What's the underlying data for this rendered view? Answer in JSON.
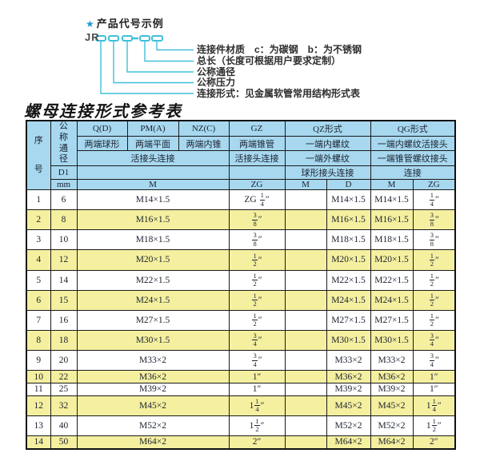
{
  "colors": {
    "accent_cyan": "#3fc0da",
    "star_blue": "#1e9ad6",
    "header_bg": "#a7d8ef",
    "row_alt_bg": "#f5f0a0",
    "border": "#1a1a1a"
  },
  "diagram": {
    "star": "★",
    "title": "产品代号示例",
    "prefix": "JR",
    "labels": [
      "连接件材质　c：为碳钢　b：为不锈钢",
      "总长（长度可根据用户要求定制）",
      "公称通径",
      "公称压力",
      "连接形式：见金属软管常用结构形式表"
    ]
  },
  "table": {
    "title": "螺母连接形式参考表",
    "header": {
      "seq": "序\n号",
      "dn": "公\n称\n通\n径",
      "d1": "D1",
      "mm": "mm",
      "q": "Q(D)",
      "q_sub": "两端球形",
      "pm": "PM(A)",
      "pm_sub": "两端平面",
      "nz": "NZ(C)",
      "nz_sub": "两端内锥",
      "gz": "GZ",
      "gz_sub": "两端锥管",
      "qz": "QZ形式",
      "qz_sub1": "一端内螺纹",
      "qz_sub2": "一端外螺纹",
      "qz_sub3": "球形接头连接",
      "qg": "QG形式",
      "qg_sub1": "一端内螺纹活接头",
      "qg_sub2": "一端锥管螺纹接头",
      "qg_sub3": "连接",
      "joint3": "活接头连接",
      "joint_gz": "活接头连接",
      "m": "M",
      "zg": "ZG",
      "qz_m": "M",
      "qz_d": "D",
      "qg_m": "M",
      "qg_zg": "ZG"
    },
    "rows": [
      {
        "seq": "1",
        "dn": "6",
        "m": "M14×1.5",
        "gz_zg": "ZG {1/4}″",
        "qz_m": "",
        "qz_d": "M14×1.5",
        "qg_m": "M14×1.5",
        "qg_zg": "{1/4}″"
      },
      {
        "seq": "2",
        "dn": "8",
        "m": "M16×1.5",
        "gz_zg": "{3/8}″",
        "qz_m": "",
        "qz_d": "M16×1.5",
        "qg_m": "M16×1.5",
        "qg_zg": "{3/8}″"
      },
      {
        "seq": "3",
        "dn": "10",
        "m": "M18×1.5",
        "gz_zg": "{3/8}″",
        "qz_m": "",
        "qz_d": "M18×1.5",
        "qg_m": "M18×1.5",
        "qg_zg": "{3/8}″"
      },
      {
        "seq": "4",
        "dn": "12",
        "m": "M20×1.5",
        "gz_zg": "{1/2}″",
        "qz_m": "",
        "qz_d": "M20×1.5",
        "qg_m": "M20×1.5",
        "qg_zg": "{1/2}″"
      },
      {
        "seq": "5",
        "dn": "14",
        "m": "M22×1.5",
        "gz_zg": "{1/2}″",
        "qz_m": "",
        "qz_d": "M22×1.5",
        "qg_m": "M22×1.5",
        "qg_zg": "{1/2}″"
      },
      {
        "seq": "6",
        "dn": "15",
        "m": "M24×1.5",
        "gz_zg": "{1/2}″",
        "qz_m": "",
        "qz_d": "M24×1.5",
        "qg_m": "M24×1.5",
        "qg_zg": "{1/2}″"
      },
      {
        "seq": "7",
        "dn": "16",
        "m": "M27×1.5",
        "gz_zg": "{1/2}″",
        "qz_m": "",
        "qz_d": "M27×1.5",
        "qg_m": "M27×1.5",
        "qg_zg": "{1/2}″"
      },
      {
        "seq": "8",
        "dn": "18",
        "m": "M30×1.5",
        "gz_zg": "{3/4}″",
        "qz_m": "",
        "qz_d": "M30×1.5",
        "qg_m": "M30×1.5",
        "qg_zg": "{3/4}″"
      },
      {
        "seq": "9",
        "dn": "20",
        "m": "M33×2",
        "gz_zg": "{3/4}″",
        "qz_m": "",
        "qz_d": "M33×2",
        "qg_m": "M33×2",
        "qg_zg": "{3/4}″"
      },
      {
        "seq": "10",
        "dn": "22",
        "m": "M36×2",
        "gz_zg": "1″",
        "qz_m": "",
        "qz_d": "M36×2",
        "qg_m": "M36×2",
        "qg_zg": "1″"
      },
      {
        "seq": "11",
        "dn": "25",
        "m": "M39×2",
        "gz_zg": "1″",
        "qz_m": "",
        "qz_d": "M39×2",
        "qg_m": "M39×2",
        "qg_zg": "1″"
      },
      {
        "seq": "12",
        "dn": "32",
        "m": "M45×2",
        "gz_zg": "1{1/4}″",
        "qz_m": "",
        "qz_d": "M45×2",
        "qg_m": "M45×2",
        "qg_zg": "1{1/4}″"
      },
      {
        "seq": "13",
        "dn": "40",
        "m": "M52×2",
        "gz_zg": "1{1/2}″",
        "qz_m": "",
        "qz_d": "M52×2",
        "qg_m": "M52×2",
        "qg_zg": "1{1/2}″"
      },
      {
        "seq": "14",
        "dn": "50",
        "m": "M64×2",
        "gz_zg": "2″",
        "qz_m": "",
        "qz_d": "M64×2",
        "qg_m": "M64×2",
        "qg_zg": "2″"
      }
    ]
  }
}
